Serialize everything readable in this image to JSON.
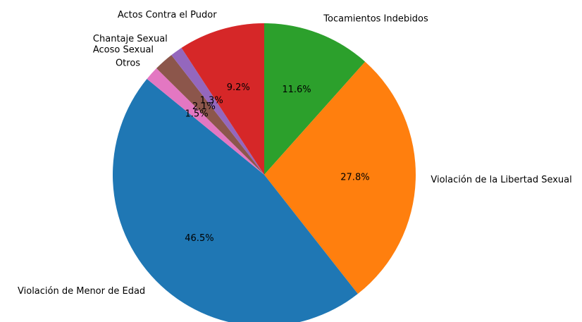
{
  "chart_data": {
    "type": "pie",
    "categories": [
      "Tocamientos Indebidos",
      "Violación de la Libertad Sexual",
      "Violación de Menor de Edad",
      "Otros",
      "Acoso Sexual",
      "Chantaje Sexual",
      "Actos Contra el Pudor"
    ],
    "values": [
      11.6,
      27.8,
      46.5,
      1.5,
      2.1,
      1.3,
      9.2
    ],
    "value_labels": [
      "11.6%",
      "27.8%",
      "46.5%",
      "1.5%",
      "2.1%",
      "1.3%",
      "9.2%"
    ],
    "colors": [
      "#2ca02c",
      "#ff7f0e",
      "#1f77b4",
      "#e377c2",
      "#8c564b",
      "#9467bd",
      "#d62728"
    ],
    "start_angle": 90,
    "direction": "clockwise"
  }
}
